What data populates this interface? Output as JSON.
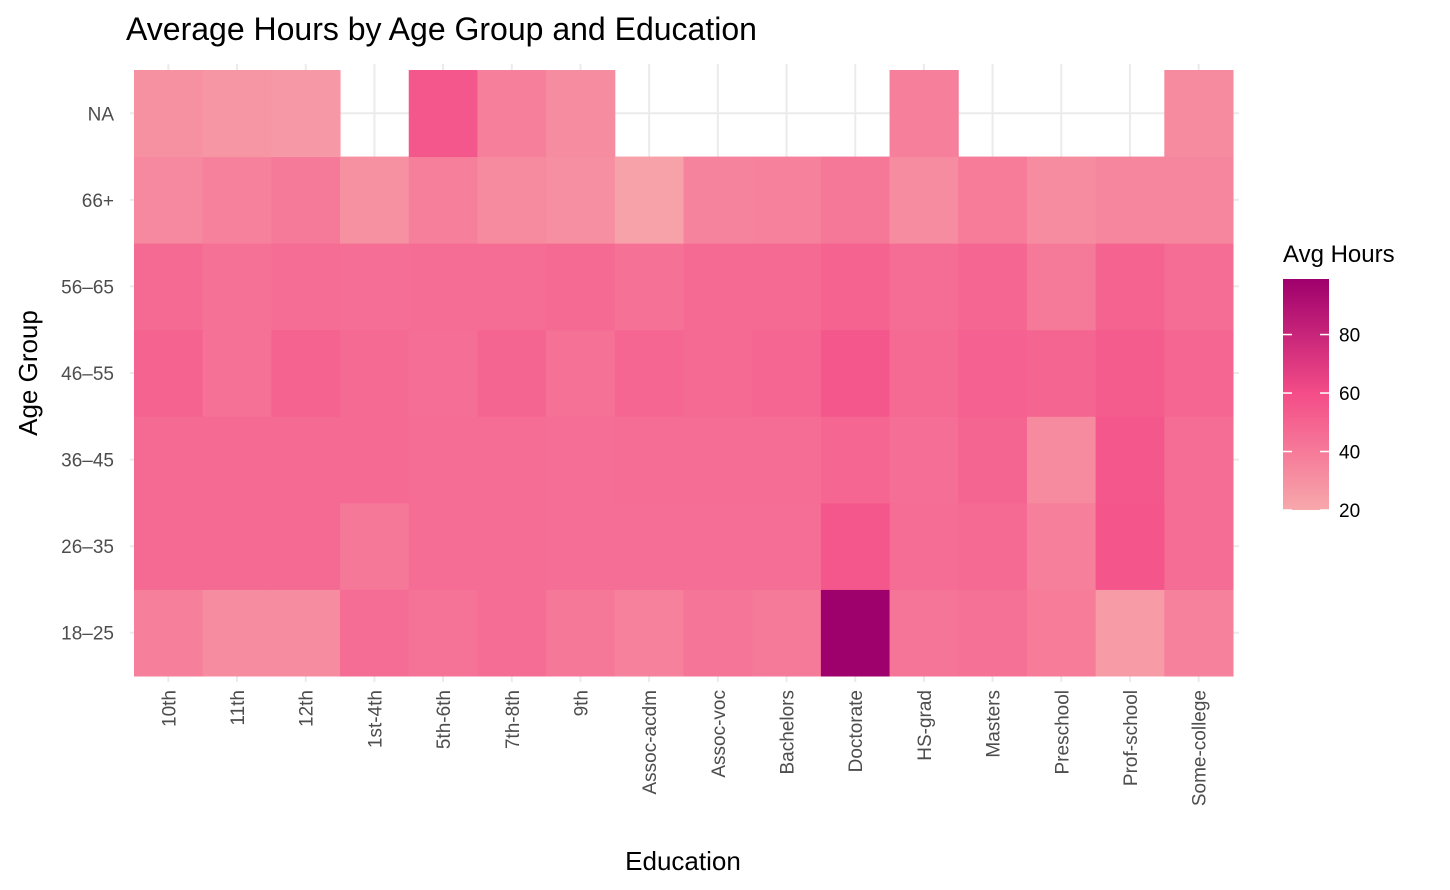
{
  "chart_data": {
    "type": "heatmap",
    "title": "Average Hours by Age Group and Education",
    "xlabel": "Education",
    "ylabel": "Age Group",
    "x_categories": [
      "10th",
      "11th",
      "12th",
      "1st-4th",
      "5th-6th",
      "7th-8th",
      "9th",
      "Assoc-acdm",
      "Assoc-voc",
      "Bachelors",
      "Doctorate",
      "HS-grad",
      "Masters",
      "Preschool",
      "Prof-school",
      "Some-college"
    ],
    "y_categories": [
      "18–25",
      "26–35",
      "36–45",
      "46–55",
      "56–65",
      "66+",
      "NA"
    ],
    "values": [
      [
        38,
        32,
        32,
        46,
        43,
        46,
        41,
        37,
        42,
        40,
        99,
        42,
        44,
        39,
        25,
        37
      ],
      [
        47,
        47,
        47,
        41,
        46,
        46,
        45,
        45,
        45,
        45,
        55,
        46,
        47,
        38,
        56,
        46
      ],
      [
        47,
        47,
        47,
        47,
        46,
        46,
        45,
        46,
        46,
        46,
        48,
        45,
        49,
        33,
        55,
        46
      ],
      [
        50,
        44,
        50,
        47,
        45,
        49,
        44,
        48,
        47,
        48,
        55,
        47,
        51,
        49,
        53,
        48
      ],
      [
        47,
        44,
        46,
        45,
        46,
        46,
        47,
        44,
        47,
        47,
        50,
        46,
        48,
        40,
        50,
        46
      ],
      [
        34,
        37,
        40,
        30,
        38,
        33,
        31,
        23,
        36,
        37,
        41,
        32,
        39,
        32,
        35,
        35
      ],
      [
        30,
        28,
        27,
        null,
        55,
        38,
        32,
        null,
        null,
        null,
        null,
        38,
        null,
        null,
        null,
        33
      ]
    ],
    "legend": {
      "title": "Avg Hours",
      "ticks": [
        20,
        40,
        60,
        80
      ],
      "range": [
        20,
        99
      ],
      "placement": "right",
      "colors": [
        "#f7a8ab",
        "#f44d88",
        "#9e006c"
      ]
    },
    "grid": true,
    "background": "#ffffff"
  }
}
